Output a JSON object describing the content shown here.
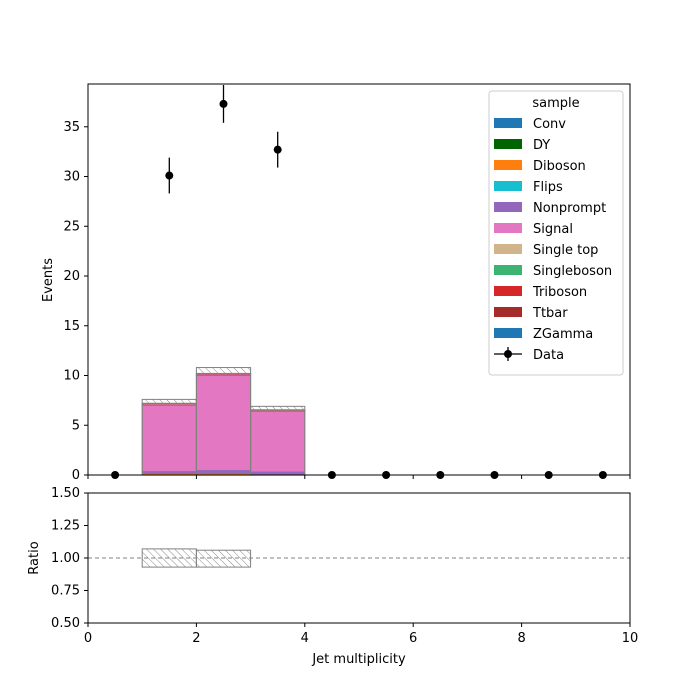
{
  "chart_data": {
    "type": "bar",
    "stacked": true,
    "x_bins": [
      [
        0,
        1
      ],
      [
        1,
        2
      ],
      [
        2,
        3
      ],
      [
        3,
        4
      ],
      [
        4,
        5
      ],
      [
        5,
        6
      ],
      [
        6,
        7
      ],
      [
        7,
        8
      ],
      [
        8,
        9
      ],
      [
        9,
        10
      ]
    ],
    "main": {
      "ylabel": "Events",
      "ylim": [
        0,
        39.3
      ],
      "yticks": [
        0,
        5,
        10,
        15,
        20,
        25,
        30,
        35
      ],
      "series": [
        {
          "name": "Conv",
          "color": "#1f77b4",
          "values": [
            0,
            0,
            0,
            0,
            0,
            0,
            0,
            0,
            0,
            0
          ]
        },
        {
          "name": "DY",
          "color": "#006400",
          "values": [
            0,
            0,
            0,
            0,
            0,
            0,
            0,
            0,
            0,
            0
          ]
        },
        {
          "name": "Diboson",
          "color": "#ff7f0e",
          "values": [
            0,
            0.1,
            0.1,
            0.05,
            0,
            0,
            0,
            0,
            0,
            0
          ]
        },
        {
          "name": "Flips",
          "color": "#17becf",
          "values": [
            0,
            0,
            0,
            0,
            0,
            0,
            0,
            0,
            0,
            0
          ]
        },
        {
          "name": "Nonprompt",
          "color": "#9467bd",
          "values": [
            0,
            0.3,
            0.4,
            0.3,
            0,
            0,
            0,
            0,
            0,
            0
          ]
        },
        {
          "name": "Signal",
          "color": "#e377c2",
          "values": [
            0,
            6.7,
            9.6,
            6.1,
            0,
            0,
            0,
            0,
            0,
            0
          ]
        },
        {
          "name": "Single top",
          "color": "#d2b48c",
          "values": [
            0,
            0,
            0,
            0,
            0,
            0,
            0,
            0,
            0,
            0
          ]
        },
        {
          "name": "Singleboson",
          "color": "#3cb371",
          "values": [
            0,
            0,
            0,
            0,
            0,
            0,
            0,
            0,
            0,
            0
          ]
        },
        {
          "name": "Triboson",
          "color": "#d62728",
          "values": [
            0,
            0.05,
            0.05,
            0.05,
            0,
            0,
            0,
            0,
            0,
            0
          ]
        },
        {
          "name": "Ttbar",
          "color": "#a52a2a",
          "values": [
            0,
            0.05,
            0.05,
            0.05,
            0,
            0,
            0,
            0,
            0,
            0
          ]
        },
        {
          "name": "ZGamma",
          "color": "#1f77b4",
          "values": [
            0,
            0,
            0,
            0,
            0,
            0,
            0,
            0,
            0,
            0
          ]
        }
      ],
      "uncertainty": {
        "low": [
          0,
          7.0,
          10.0,
          6.4,
          0,
          0,
          0,
          0,
          0,
          0
        ],
        "high": [
          0,
          7.6,
          10.8,
          6.9,
          0,
          0,
          0,
          0,
          0,
          0
        ]
      },
      "data": {
        "name": "Data",
        "x": [
          0.5,
          1.5,
          2.5,
          3.5,
          4.5,
          5.5,
          6.5,
          7.5,
          8.5,
          9.5
        ],
        "y": [
          0,
          30.1,
          37.3,
          32.7,
          0,
          0,
          0,
          0,
          0,
          0
        ],
        "err": [
          0,
          1.8,
          1.9,
          1.8,
          0,
          0,
          0,
          0,
          0,
          0
        ]
      },
      "legend": {
        "title": "sample",
        "position": "top-right"
      }
    },
    "ratio": {
      "ylabel": "Ratio",
      "ylim": [
        0.5,
        1.5
      ],
      "yticks": [
        "0.50",
        "0.75",
        "1.00",
        "1.25",
        "1.50"
      ],
      "yticks_values": [
        0.5,
        0.75,
        1.0,
        1.25,
        1.5
      ],
      "reference_line": 1.0,
      "uncertainty": {
        "low": [
          null,
          0.93,
          0.93,
          null,
          null,
          null,
          null,
          null,
          null,
          null
        ],
        "high": [
          null,
          1.07,
          1.06,
          null,
          null,
          null,
          null,
          null,
          null,
          null
        ]
      }
    },
    "xlabel": "Jet multiplicity",
    "xlim": [
      0,
      10
    ],
    "xticks": [
      0,
      2,
      4,
      6,
      8,
      10
    ]
  }
}
